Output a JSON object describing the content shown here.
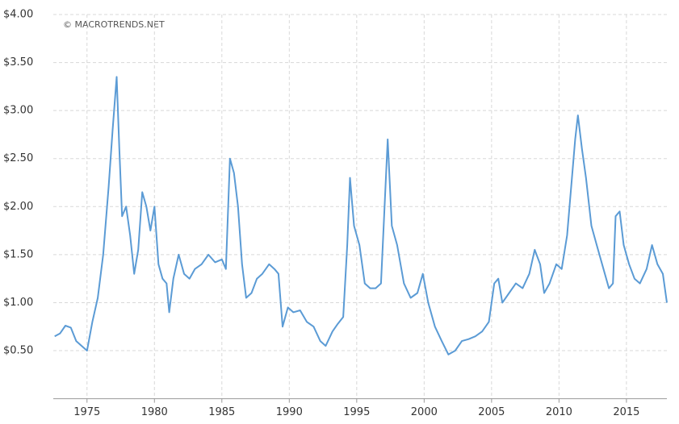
{
  "chart_data": {
    "type": "line",
    "annotation": "© MACROTRENDS.NET",
    "color": "#5b9bd5",
    "grid": true,
    "xlim": [
      1972.5,
      2018.0
    ],
    "xticks": [
      1975,
      1980,
      1985,
      1990,
      1995,
      2000,
      2005,
      2010,
      2015
    ],
    "ylim": [
      0,
      4
    ],
    "yticks": [
      {
        "value": 0.5,
        "label": "$0.50"
      },
      {
        "value": 1,
        "label": "$1.00"
      },
      {
        "value": 1.5,
        "label": "$1.50"
      },
      {
        "value": 2,
        "label": "$2.00"
      },
      {
        "value": 2.5,
        "label": "$2.50"
      },
      {
        "value": 3,
        "label": "$3.00"
      },
      {
        "value": 3.5,
        "label": "$3.50"
      },
      {
        "value": 4,
        "label": "$4.00"
      }
    ],
    "x": [
      1972.6,
      1973.0,
      1973.4,
      1973.8,
      1974.2,
      1974.6,
      1975.0,
      1975.4,
      1975.8,
      1976.2,
      1976.6,
      1976.9,
      1977.2,
      1977.4,
      1977.6,
      1977.9,
      1978.2,
      1978.5,
      1978.8,
      1979.1,
      1979.4,
      1979.7,
      1980.0,
      1980.3,
      1980.6,
      1980.9,
      1981.1,
      1981.4,
      1981.8,
      1982.2,
      1982.6,
      1983.0,
      1983.5,
      1984.0,
      1984.5,
      1985.0,
      1985.3,
      1985.6,
      1985.9,
      1986.2,
      1986.5,
      1986.8,
      1987.2,
      1987.6,
      1988.0,
      1988.5,
      1988.9,
      1989.2,
      1989.5,
      1989.9,
      1990.3,
      1990.8,
      1991.3,
      1991.8,
      1992.3,
      1992.7,
      1993.2,
      1993.6,
      1994.0,
      1994.3,
      1994.5,
      1994.8,
      1995.2,
      1995.6,
      1996.0,
      1996.4,
      1996.8,
      1997.3,
      1997.6,
      1998.0,
      1998.5,
      1999.0,
      1999.5,
      1999.9,
      2000.3,
      2000.8,
      2001.3,
      2001.8,
      2002.3,
      2002.8,
      2003.3,
      2003.8,
      2004.3,
      2004.8,
      2005.2,
      2005.5,
      2005.8,
      2006.3,
      2006.8,
      2007.3,
      2007.8,
      2008.2,
      2008.6,
      2008.9,
      2009.3,
      2009.8,
      2010.2,
      2010.6,
      2010.9,
      2011.2,
      2011.4,
      2011.7,
      2012.0,
      2012.4,
      2012.8,
      2013.2,
      2013.7,
      2014.0,
      2014.2,
      2014.5,
      2014.8,
      2015.2,
      2015.6,
      2016.0,
      2016.5,
      2016.9,
      2017.3,
      2017.7,
      2018.0
    ],
    "values": [
      0.65,
      0.68,
      0.76,
      0.74,
      0.6,
      0.55,
      0.5,
      0.8,
      1.05,
      1.5,
      2.2,
      2.8,
      3.35,
      2.6,
      1.9,
      2.0,
      1.7,
      1.3,
      1.55,
      2.15,
      2.0,
      1.75,
      2.0,
      1.4,
      1.25,
      1.2,
      0.9,
      1.25,
      1.5,
      1.3,
      1.25,
      1.35,
      1.4,
      1.5,
      1.42,
      1.45,
      1.35,
      2.5,
      2.35,
      2.0,
      1.4,
      1.05,
      1.1,
      1.25,
      1.3,
      1.4,
      1.35,
      1.3,
      0.75,
      0.95,
      0.9,
      0.92,
      0.8,
      0.75,
      0.6,
      0.55,
      0.7,
      0.78,
      0.85,
      1.6,
      2.3,
      1.8,
      1.6,
      1.2,
      1.15,
      1.15,
      1.2,
      2.7,
      1.8,
      1.6,
      1.2,
      1.05,
      1.1,
      1.3,
      1.0,
      0.75,
      0.6,
      0.46,
      0.5,
      0.6,
      0.62,
      0.65,
      0.7,
      0.8,
      1.2,
      1.25,
      1.0,
      1.1,
      1.2,
      1.15,
      1.3,
      1.55,
      1.4,
      1.1,
      1.2,
      1.4,
      1.35,
      1.7,
      2.2,
      2.7,
      2.95,
      2.6,
      2.3,
      1.8,
      1.6,
      1.4,
      1.15,
      1.2,
      1.9,
      1.95,
      1.6,
      1.4,
      1.25,
      1.2,
      1.35,
      1.6,
      1.4,
      1.3,
      1.0
    ]
  }
}
